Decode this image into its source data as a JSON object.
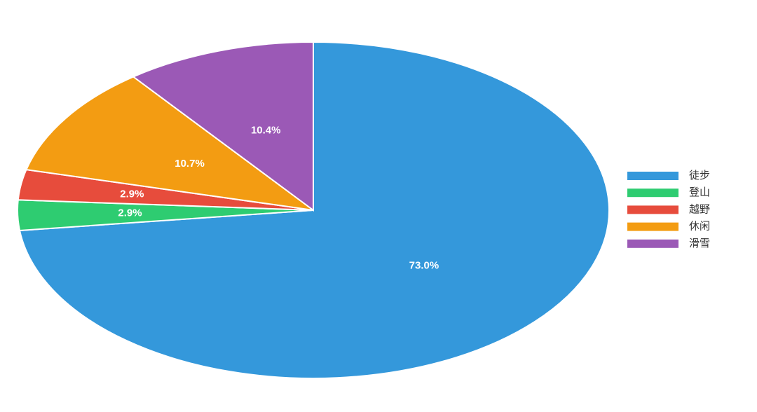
{
  "chart_data": {
    "type": "pie",
    "categories": [
      "徒步",
      "登山",
      "越野",
      "休闲",
      "滑雪"
    ],
    "values": [
      73.0,
      2.9,
      2.9,
      10.7,
      10.4
    ],
    "value_labels": [
      "73.0%",
      "2.9%",
      "2.9%",
      "10.7%",
      "10.4%"
    ],
    "colors": [
      "#3498db",
      "#2ecc71",
      "#e74c3c",
      "#f39c12",
      "#9b59b6"
    ],
    "legend": "right"
  }
}
